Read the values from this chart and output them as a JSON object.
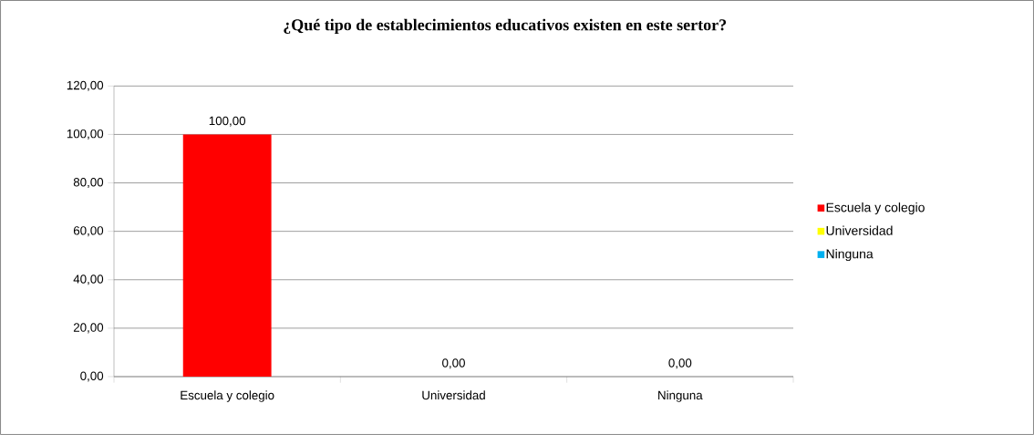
{
  "chart_data": {
    "type": "bar",
    "title": "¿Qué tipo de establecimientos educativos existen en este sertor?",
    "categories": [
      "Escuela y colegio",
      "Universidad",
      "Ninguna"
    ],
    "series": [
      {
        "name": "Escuela y colegio",
        "color": "#ff0000",
        "values": [
          100,
          null,
          null
        ],
        "value_labels": [
          "100,00",
          null,
          null
        ]
      },
      {
        "name": "Universidad",
        "color": "#ffff00",
        "values": [
          null,
          0,
          null
        ],
        "value_labels": [
          null,
          "0,00",
          null
        ]
      },
      {
        "name": "Ninguna",
        "color": "#00b0f0",
        "values": [
          null,
          null,
          0
        ],
        "value_labels": [
          null,
          null,
          "0,00"
        ]
      }
    ],
    "stacked": true,
    "ylim": [
      0,
      120
    ],
    "yticks": [
      {
        "value": 0,
        "label": "0,00"
      },
      {
        "value": 20,
        "label": "20,00"
      },
      {
        "value": 40,
        "label": "40,00"
      },
      {
        "value": 60,
        "label": "60,00"
      },
      {
        "value": 80,
        "label": "80,00"
      },
      {
        "value": 100,
        "label": "100,00"
      },
      {
        "value": 120,
        "label": "120,00"
      }
    ],
    "grid": "y",
    "legend": "right"
  }
}
